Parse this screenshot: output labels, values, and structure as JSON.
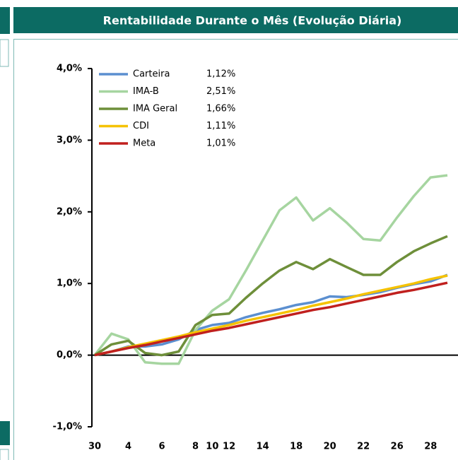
{
  "chart_data": {
    "type": "line",
    "title": "Rentabilidade Durante o Mês (Evolução Diária)",
    "categories": [
      "30",
      null,
      "4",
      null,
      "6",
      null,
      "8",
      "10",
      "12",
      null,
      "14",
      null,
      "18",
      null,
      "20",
      null,
      "22",
      null,
      "26",
      null,
      "28",
      null
    ],
    "ylim": [
      -1,
      4
    ],
    "yticks": [
      {
        "value": -1,
        "label": "-1,0%"
      },
      {
        "value": 0,
        "label": "0,0%"
      },
      {
        "value": 1,
        "label": "1,0%"
      },
      {
        "value": 2,
        "label": "2,0%"
      },
      {
        "value": 3,
        "label": "3,0%"
      },
      {
        "value": 4,
        "label": "4,0%"
      }
    ],
    "grid": false,
    "series": [
      {
        "name": "Carteira",
        "color": "#5b8fd0",
        "legend_value": "1,12%",
        "values": [
          0,
          0.05,
          0.12,
          0.12,
          0.15,
          0.22,
          0.35,
          0.42,
          0.45,
          0.53,
          0.59,
          0.64,
          0.7,
          0.74,
          0.82,
          0.81,
          0.84,
          0.88,
          0.94,
          0.99,
          1.03,
          1.12
        ]
      },
      {
        "name": "IMA-B",
        "color": "#a6d5a0",
        "legend_value": "2,51%",
        "values": [
          0,
          0.3,
          0.22,
          -0.1,
          -0.12,
          -0.12,
          0.35,
          0.62,
          0.78,
          1.18,
          1.6,
          2.02,
          2.2,
          1.88,
          2.05,
          1.85,
          1.62,
          1.6,
          1.92,
          2.22,
          2.48,
          2.51
        ]
      },
      {
        "name": "IMA Geral",
        "color": "#6e8f3a",
        "legend_value": "1,66%",
        "values": [
          0,
          0.15,
          0.2,
          0.03,
          0.0,
          0.05,
          0.42,
          0.56,
          0.58,
          0.8,
          1.0,
          1.18,
          1.3,
          1.2,
          1.34,
          1.23,
          1.12,
          1.12,
          1.3,
          1.45,
          1.56,
          1.66
        ]
      },
      {
        "name": "CDI",
        "color": "#f5c200",
        "legend_value": "1,11%",
        "values": [
          0,
          0.05,
          0.11,
          0.16,
          0.21,
          0.26,
          0.32,
          0.37,
          0.42,
          0.48,
          0.53,
          0.58,
          0.63,
          0.69,
          0.74,
          0.79,
          0.85,
          0.9,
          0.95,
          1.0,
          1.06,
          1.11
        ]
      },
      {
        "name": "Meta",
        "color": "#c0201e",
        "legend_value": "1,01%",
        "values": [
          0,
          0.05,
          0.1,
          0.14,
          0.19,
          0.24,
          0.29,
          0.34,
          0.38,
          0.43,
          0.48,
          0.53,
          0.58,
          0.63,
          0.67,
          0.72,
          0.77,
          0.82,
          0.87,
          0.91,
          0.96,
          1.01
        ]
      }
    ]
  }
}
